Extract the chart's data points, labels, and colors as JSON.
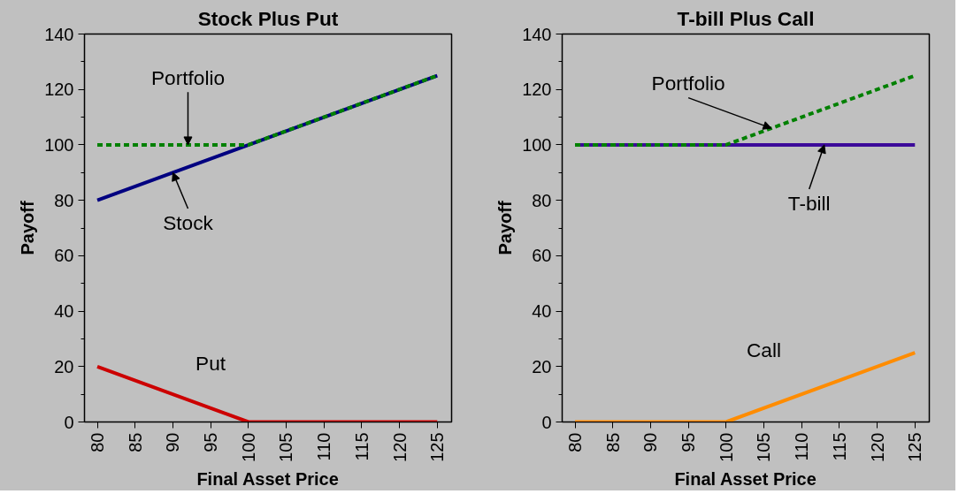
{
  "chart_data": [
    {
      "type": "line",
      "title": "Stock Plus Put",
      "xlabel": "Final Asset Price",
      "ylabel": "Payoff",
      "xlim": [
        78.3,
        126.9
      ],
      "ylim": [
        0,
        140
      ],
      "xticks": [
        80,
        85,
        90,
        95,
        100,
        105,
        110,
        115,
        120,
        125
      ],
      "yticks": [
        0,
        {
          "value": 10,
          "label": null
        },
        20,
        {
          "value": 30,
          "label": null
        },
        40,
        {
          "value": 50,
          "label": null
        },
        60,
        {
          "value": 70,
          "label": null
        },
        80,
        {
          "value": 90,
          "label": null
        },
        100,
        {
          "value": 110,
          "label": null
        },
        120,
        {
          "value": 130,
          "label": null
        },
        140
      ],
      "grid": false,
      "series": [
        {
          "color": "#000080",
          "line_style": "solid",
          "x": [
            80,
            125
          ],
          "values": [
            80,
            125
          ]
        },
        {
          "color": "#cc0000",
          "line_style": "solid",
          "x": [
            80,
            100,
            125
          ],
          "values": [
            20,
            0,
            0
          ]
        },
        {
          "color": "#008000",
          "line_style": "dashed",
          "x": [
            80,
            100,
            125
          ],
          "values": [
            100,
            100,
            125
          ]
        }
      ],
      "annotations": [
        {
          "text": "Portfolio",
          "x": 92,
          "y": 100
        },
        {
          "text": "Stock",
          "x": 90,
          "y": 90
        },
        {
          "text": "Put",
          "x": 92,
          "y": 8
        }
      ]
    },
    {
      "type": "line",
      "title": "T-bill Plus Call",
      "xlabel": "Final Asset Price",
      "ylabel": "Payoff",
      "xlim": [
        78.3,
        126.9
      ],
      "ylim": [
        0,
        140
      ],
      "xticks": [
        80,
        85,
        90,
        95,
        100,
        105,
        110,
        115,
        120,
        125
      ],
      "yticks": [
        0,
        {
          "value": 10,
          "label": null
        },
        20,
        {
          "value": 30,
          "label": null
        },
        40,
        {
          "value": 50,
          "label": null
        },
        60,
        {
          "value": 70,
          "label": null
        },
        80,
        {
          "value": 90,
          "label": null
        },
        100,
        {
          "value": 110,
          "label": null
        },
        120,
        {
          "value": 130,
          "label": null
        },
        140
      ],
      "grid": false,
      "series": [
        {
          "color": "#3c0a9a",
          "line_style": "solid",
          "x": [
            80,
            125
          ],
          "values": [
            100,
            100
          ]
        },
        {
          "color": "#ff8c00",
          "line_style": "solid",
          "x": [
            80,
            100,
            125
          ],
          "values": [
            0,
            0,
            25
          ]
        },
        {
          "color": "#008000",
          "line_style": "dashed",
          "x": [
            80,
            100,
            125
          ],
          "values": [
            100,
            100,
            125
          ]
        }
      ],
      "annotations": [
        {
          "text": "Portfolio",
          "x": 106,
          "y": 106
        },
        {
          "text": "T-bill",
          "x": 113,
          "y": 100
        },
        {
          "text": "Call",
          "x": 110,
          "y": 10
        }
      ]
    }
  ]
}
